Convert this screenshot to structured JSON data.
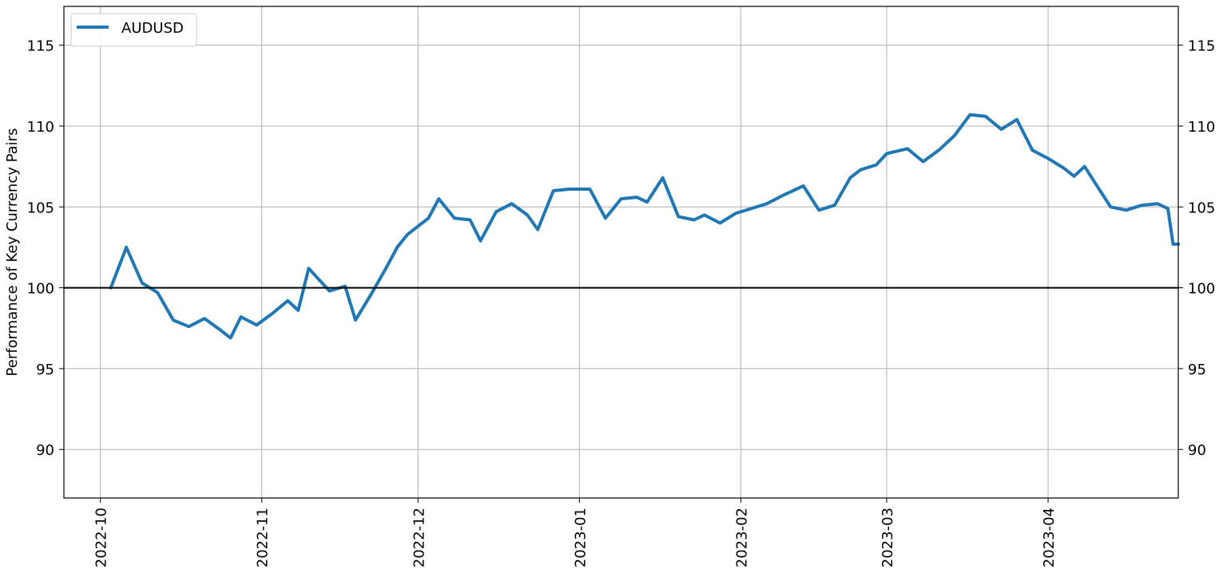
{
  "chart_data": {
    "type": "line",
    "ylabel": "Performance of Key Currency Pairs",
    "xlim": [
      "2022-09-24",
      "2023-04-26"
    ],
    "ylim": [
      87,
      117.4
    ],
    "grid": true,
    "legend_position": "top-left",
    "reference_line": 100,
    "y_ticks": [
      90,
      95,
      100,
      105,
      110,
      115
    ],
    "x_ticks": [
      "2022-10",
      "2022-11",
      "2022-12",
      "2023-01",
      "2023-02",
      "2023-03",
      "2023-04"
    ],
    "series": [
      {
        "name": "AUDUSD",
        "color": "#1f77b4",
        "dash": "solid",
        "points": [
          [
            "2022-10-03",
            100
          ],
          [
            "2022-10-06",
            102.5
          ],
          [
            "2022-10-09",
            100.3
          ],
          [
            "2022-10-12",
            99.7
          ],
          [
            "2022-10-15",
            98
          ],
          [
            "2022-10-18",
            97.6
          ],
          [
            "2022-10-21",
            98.1
          ],
          [
            "2022-10-24",
            97.4
          ],
          [
            "2022-10-26",
            96.9
          ],
          [
            "2022-10-28",
            98.2
          ],
          [
            "2022-10-31",
            97.7
          ],
          [
            "2022-11-03",
            98.4
          ],
          [
            "2022-11-06",
            99.2
          ],
          [
            "2022-11-08",
            98.6
          ],
          [
            "2022-11-10",
            101.2
          ],
          [
            "2022-11-14",
            99.8
          ],
          [
            "2022-11-17",
            100.1
          ],
          [
            "2022-11-19",
            98
          ],
          [
            "2022-11-22",
            99.6
          ],
          [
            "2022-11-25",
            101.3
          ],
          [
            "2022-11-27",
            102.5
          ],
          [
            "2022-11-29",
            103.3
          ],
          [
            "2022-12-03",
            104.3
          ],
          [
            "2022-12-05",
            105.5
          ],
          [
            "2022-12-08",
            104.3
          ],
          [
            "2022-12-11",
            104.2
          ],
          [
            "2022-12-13",
            102.9
          ],
          [
            "2022-12-16",
            104.7
          ],
          [
            "2022-12-19",
            105.2
          ],
          [
            "2022-12-22",
            104.5
          ],
          [
            "2022-12-24",
            103.6
          ],
          [
            "2022-12-27",
            106
          ],
          [
            "2022-12-30",
            106.1
          ],
          [
            "2023-01-03",
            106.1
          ],
          [
            "2023-01-06",
            104.3
          ],
          [
            "2023-01-09",
            105.5
          ],
          [
            "2023-01-12",
            105.6
          ],
          [
            "2023-01-14",
            105.3
          ],
          [
            "2023-01-17",
            106.8
          ],
          [
            "2023-01-20",
            104.4
          ],
          [
            "2023-01-23",
            104.2
          ],
          [
            "2023-01-25",
            104.5
          ],
          [
            "2023-01-28",
            104
          ],
          [
            "2023-01-31",
            104.6
          ],
          [
            "2023-02-03",
            104.9
          ],
          [
            "2023-02-06",
            105.2
          ],
          [
            "2023-02-09",
            105.7
          ],
          [
            "2023-02-13",
            106.3
          ],
          [
            "2023-02-16",
            104.8
          ],
          [
            "2023-02-19",
            105.1
          ],
          [
            "2023-02-22",
            106.8
          ],
          [
            "2023-02-24",
            107.3
          ],
          [
            "2023-02-27",
            107.6
          ],
          [
            "2023-03-01",
            108.3
          ],
          [
            "2023-03-05",
            108.6
          ],
          [
            "2023-03-08",
            107.8
          ],
          [
            "2023-03-11",
            108.5
          ],
          [
            "2023-03-14",
            109.4
          ],
          [
            "2023-03-17",
            110.7
          ],
          [
            "2023-03-20",
            110.6
          ],
          [
            "2023-03-23",
            109.8
          ],
          [
            "2023-03-26",
            110.4
          ],
          [
            "2023-03-29",
            108.5
          ],
          [
            "2023-04-01",
            108
          ],
          [
            "2023-04-04",
            107.4
          ],
          [
            "2023-04-06",
            106.9
          ],
          [
            "2023-04-08",
            107.5
          ],
          [
            "2023-04-10",
            106.5
          ],
          [
            "2023-04-13",
            105
          ],
          [
            "2023-04-16",
            104.8
          ],
          [
            "2023-04-19",
            105.1
          ],
          [
            "2023-04-22",
            105.2
          ],
          [
            "2023-04-24",
            104.9
          ],
          [
            "2023-04-25",
            102.7
          ],
          [
            "2023-04-26",
            102.7
          ]
        ]
      }
    ]
  }
}
